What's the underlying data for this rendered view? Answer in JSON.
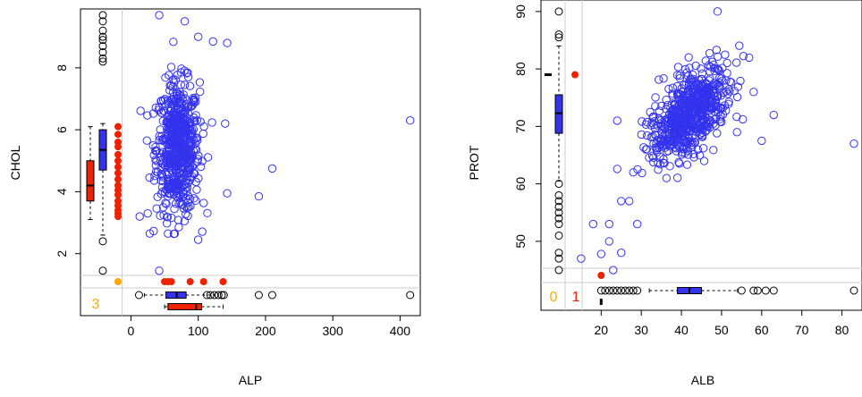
{
  "chart_data": [
    {
      "type": "scatter",
      "xlabel": "ALP",
      "ylabel": "CHOL",
      "xlim": [
        -75,
        430
      ],
      "ylim": [
        0.0,
        9.9
      ],
      "x_ticks": [
        0,
        100,
        200,
        300,
        400
      ],
      "y_ticks": [
        2,
        4,
        6,
        8
      ],
      "point_color": "#3333ee",
      "missing_color": "#ee2200",
      "count_color": "#ffaa00",
      "missing_count_label": "3",
      "cluster": {
        "x_center": 70,
        "x_spread": 16,
        "y_center": 5.4,
        "y_spread": 1.05,
        "n": 600
      },
      "outliers": [
        [
          415,
          6.3
        ],
        [
          210,
          4.75
        ],
        [
          190,
          3.85
        ],
        [
          143,
          8.8
        ],
        [
          122,
          8.85
        ],
        [
          100,
          9.0
        ],
        [
          80,
          9.5
        ],
        [
          42,
          9.7
        ],
        [
          42,
          1.45
        ],
        [
          28,
          2.65
        ],
        [
          100,
          2.45
        ],
        [
          140,
          6.2
        ],
        [
          143,
          3.95
        ],
        [
          55,
          2.65
        ],
        [
          13,
          3.2
        ],
        [
          25,
          3.3
        ]
      ],
      "missing_y_at_x": [
        3.2,
        3.3,
        3.4,
        3.55,
        3.7,
        3.9,
        4.05,
        4.2,
        4.4,
        4.6,
        4.8,
        5.0,
        5.2,
        5.45,
        5.6,
        5.85,
        6.1
      ],
      "missing_x_at_y": [
        50,
        55,
        60,
        88,
        108,
        137
      ],
      "y_margin_boxplot_present": {
        "min": 2.6,
        "q1": 4.7,
        "median": 5.35,
        "q3": 6.0,
        "max": 6.2,
        "outliers": [
          2.4,
          1.45,
          8.2,
          8.3,
          8.5,
          8.7,
          8.9,
          9.0,
          9.2,
          9.5,
          9.7
        ]
      },
      "y_margin_boxplot_missing": {
        "min": 3.1,
        "q1": 3.7,
        "median": 4.2,
        "q3": 5.0,
        "max": 6.1
      },
      "x_margin_boxplot_present": {
        "min": 20,
        "q1": 52,
        "median": 68,
        "q3": 82,
        "max": 125,
        "outliers": [
          12,
          113,
          118,
          124,
          130,
          135,
          138,
          190,
          210,
          415
        ]
      },
      "x_margin_boxplot_missing": {
        "min": 50,
        "q1": 55,
        "median": 97,
        "q3": 105,
        "max": 137
      }
    },
    {
      "type": "scatter",
      "xlabel": "ALB",
      "ylabel": "PROT",
      "xlim": [
        5,
        85
      ],
      "ylim": [
        38,
        92
      ],
      "x_ticks": [
        20,
        30,
        40,
        50,
        60,
        70,
        80
      ],
      "y_ticks": [
        50,
        60,
        70,
        80,
        90
      ],
      "point_color": "#3333ee",
      "missing_color": "#ee2200",
      "count_color": "#ffaa00",
      "missing_count_labels": [
        "0",
        "1"
      ],
      "cluster": {
        "x_center": 42,
        "x_spread": 5.2,
        "y_center": 72,
        "y_spread": 4.2,
        "n": 650
      },
      "outliers": [
        [
          15,
          47
        ],
        [
          20,
          47.8
        ],
        [
          22,
          50
        ],
        [
          23,
          45
        ],
        [
          25,
          48
        ],
        [
          27,
          57
        ],
        [
          28,
          62
        ],
        [
          22,
          53
        ],
        [
          24,
          62.6
        ],
        [
          25,
          57
        ],
        [
          29,
          53
        ],
        [
          58,
          76
        ],
        [
          60,
          67.5
        ],
        [
          63,
          72
        ],
        [
          83,
          67
        ],
        [
          49,
          90
        ],
        [
          18,
          53
        ],
        [
          24,
          71
        ]
      ],
      "missing_point": [
        20,
        41.8
      ],
      "missing_y_at_x": 79,
      "y_margin_boxplot_present": {
        "min": 60.5,
        "q1": 68.8,
        "median": 72.3,
        "q3": 75.5,
        "max": 84,
        "outliers": [
          45,
          47,
          48,
          51,
          53,
          54,
          55,
          56,
          57,
          58,
          60,
          85.5,
          86,
          90
        ]
      },
      "y_margin_boxplot_missing": {
        "min": 79,
        "q1": 79,
        "median": 79,
        "q3": 79,
        "max": 79
      },
      "x_margin_boxplot_present": {
        "min": 32,
        "q1": 39,
        "median": 42,
        "q3": 45,
        "max": 54,
        "outliers": [
          20,
          21,
          22,
          23,
          24,
          25,
          26,
          27,
          28,
          29,
          55,
          58,
          59,
          61,
          63,
          83
        ]
      },
      "x_margin_boxplot_missing": {
        "min": 20,
        "q1": 20,
        "median": 20,
        "q3": 20,
        "max": 20
      }
    }
  ]
}
